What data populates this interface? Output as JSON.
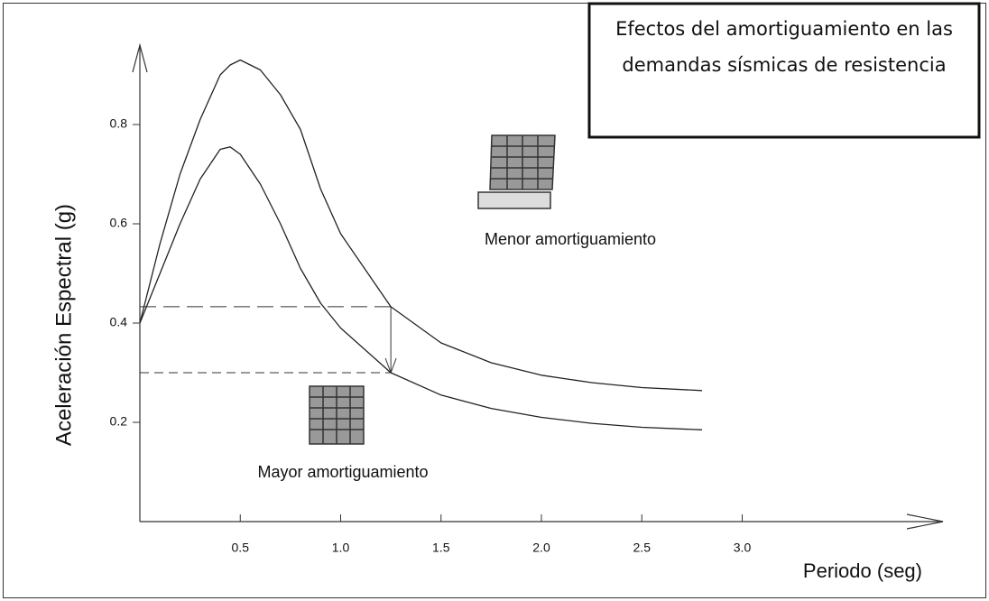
{
  "chart_data": {
    "type": "line",
    "title": "Efectos del amortiguamiento en las demandas sísmicas de resistencia",
    "x_label": "Periodo (seg)",
    "y_label": "Aceleración Espectral (g)",
    "x": [
      0,
      0.1,
      0.2,
      0.3,
      0.4,
      0.45,
      0.5,
      0.6,
      0.7,
      0.8,
      0.9,
      1.0,
      1.25,
      1.5,
      1.75,
      2.0,
      2.25,
      2.5,
      2.8
    ],
    "series": [
      {
        "name": "Menor amortiguamiento",
        "color": "#222222",
        "values": [
          0.4,
          0.56,
          0.7,
          0.81,
          0.9,
          0.92,
          0.93,
          0.91,
          0.86,
          0.79,
          0.67,
          0.58,
          0.433,
          0.36,
          0.32,
          0.295,
          0.28,
          0.27,
          0.264
        ]
      },
      {
        "name": "Mayor amortiguamiento",
        "color": "#222222",
        "values": [
          0.4,
          0.5,
          0.6,
          0.69,
          0.75,
          0.755,
          0.74,
          0.68,
          0.6,
          0.51,
          0.44,
          0.39,
          0.3,
          0.255,
          0.228,
          0.21,
          0.198,
          0.19,
          0.185
        ]
      }
    ],
    "reference": {
      "x": 1.25,
      "y_from": 0.433,
      "y_to": 0.3
    },
    "xlim": [
      0,
      4
    ],
    "ylim": [
      0,
      0.96
    ],
    "xticks": [
      0.5,
      {
        "value": 1,
        "label": "1.0"
      },
      1.5,
      {
        "value": 2,
        "label": "2.0"
      },
      2.5,
      {
        "value": 3,
        "label": "3.0"
      }
    ],
    "yticks": [
      0.2,
      0.4,
      0.6,
      0.8
    ]
  }
}
